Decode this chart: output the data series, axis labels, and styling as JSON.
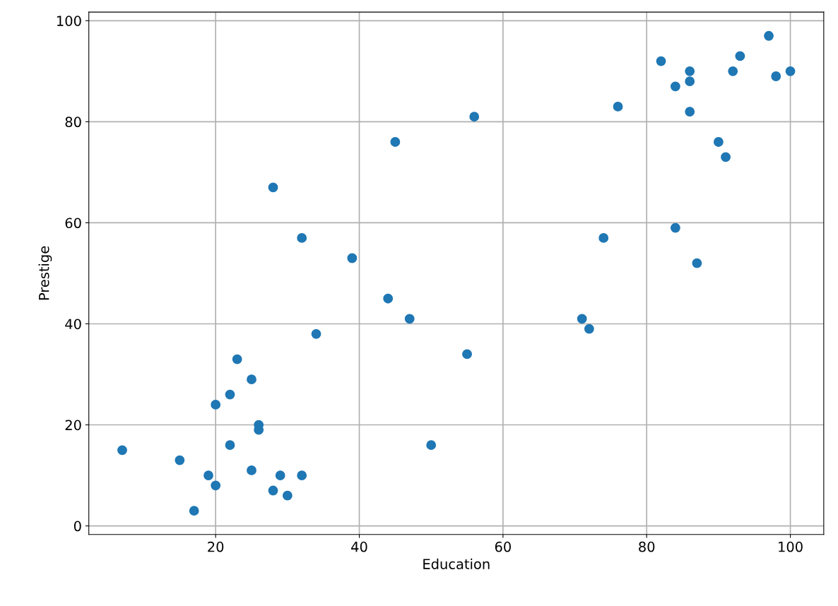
{
  "chart_data": {
    "type": "scatter",
    "xlabel": "Education",
    "ylabel": "Prestige",
    "x": [
      7,
      15,
      17,
      19,
      20,
      20,
      22,
      22,
      23,
      25,
      25,
      26,
      26,
      28,
      28,
      29,
      30,
      32,
      32,
      34,
      39,
      44,
      45,
      47,
      50,
      55,
      56,
      71,
      72,
      74,
      76,
      82,
      84,
      84,
      86,
      86,
      86,
      87,
      90,
      91,
      92,
      93,
      97,
      98,
      100
    ],
    "values": [
      15,
      13,
      3,
      10,
      8,
      24,
      16,
      26,
      33,
      29,
      11,
      20,
      19,
      67,
      7,
      10,
      6,
      57,
      10,
      38,
      53,
      45,
      76,
      41,
      16,
      34,
      81,
      41,
      39,
      57,
      83,
      92,
      87,
      59,
      90,
      88,
      82,
      52,
      76,
      73,
      90,
      93,
      97,
      89,
      90
    ],
    "color": "#1f77b4",
    "marker": "circle",
    "xlim": [
      2.35,
      104.65
    ],
    "ylim": [
      -1.7,
      101.7
    ],
    "xticks": [
      20,
      40,
      60,
      80,
      100
    ],
    "yticks": [
      0,
      20,
      40,
      60,
      80,
      100
    ],
    "grid": true
  }
}
